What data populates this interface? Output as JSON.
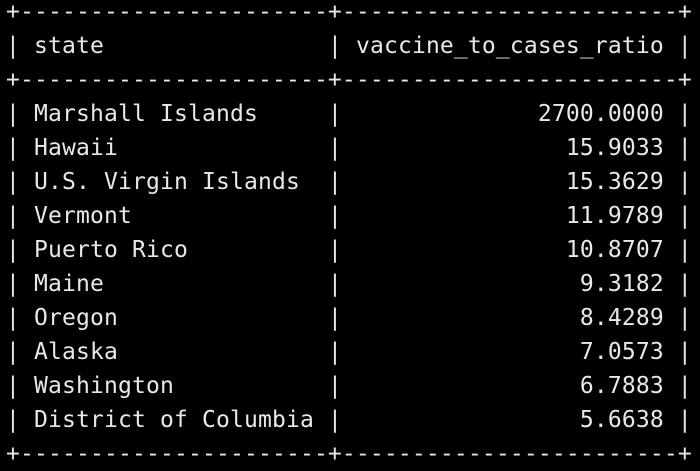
{
  "table": {
    "columns": [
      "state",
      "vaccine_to_cases_ratio"
    ],
    "rows": [
      [
        "Marshall Islands",
        "2700.0000"
      ],
      [
        "Hawaii",
        "15.9033"
      ],
      [
        "U.S. Virgin Islands",
        "15.3629"
      ],
      [
        "Vermont",
        "11.9789"
      ],
      [
        "Puerto Rico",
        "10.8707"
      ],
      [
        "Maine",
        "9.3182"
      ],
      [
        "Oregon",
        "8.4289"
      ],
      [
        "Alaska",
        "7.0573"
      ],
      [
        "Washington",
        "6.7883"
      ],
      [
        "District of Columbia",
        "5.6638"
      ]
    ]
  },
  "colors": {
    "background": "#000000",
    "text": "#e8e8e8"
  }
}
